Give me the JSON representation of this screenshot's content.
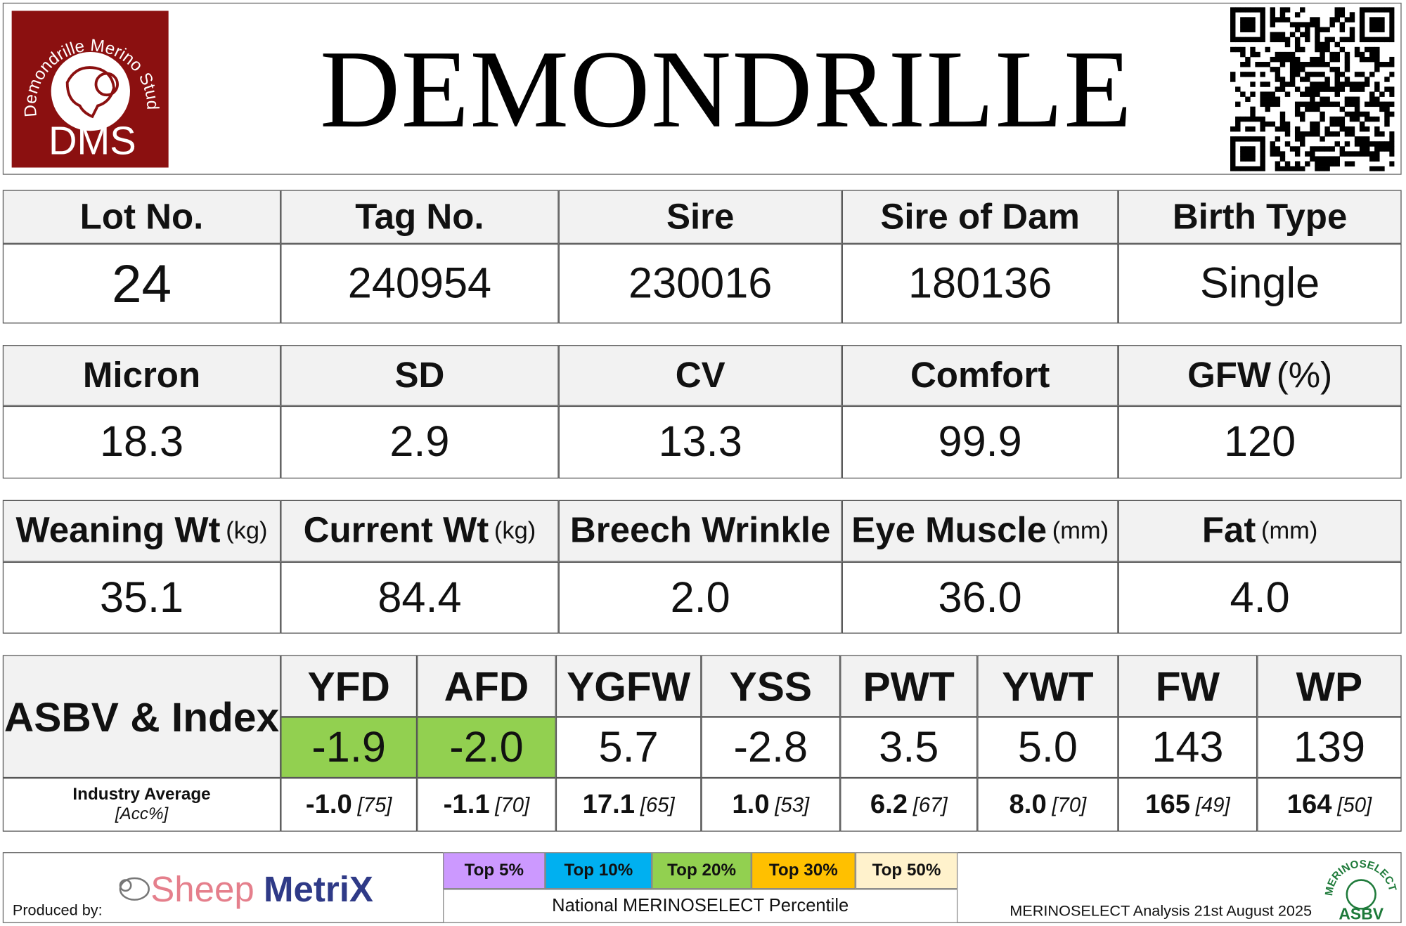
{
  "header": {
    "title": "DEMONDRILLE",
    "logo": {
      "arc": "Demondrille Merino Stud",
      "initials": "DMS"
    }
  },
  "tables": [
    {
      "columns": [
        {
          "label": "Lot No."
        },
        {
          "label": "Tag No."
        },
        {
          "label": "Sire"
        },
        {
          "label": "Sire of Dam"
        },
        {
          "label": "Birth Type"
        }
      ],
      "values": [
        "24",
        "240954",
        "230016",
        "180136",
        "Single"
      ]
    },
    {
      "columns": [
        {
          "label": "Micron"
        },
        {
          "label": "SD"
        },
        {
          "label": "CV"
        },
        {
          "label": "Comfort"
        },
        {
          "label": "GFW",
          "unit": "(%)"
        }
      ],
      "values": [
        "18.3",
        "2.9",
        "13.3",
        "99.9",
        "120"
      ]
    },
    {
      "columns": [
        {
          "label": "Weaning Wt",
          "unit": "(kg)"
        },
        {
          "label": "Current Wt",
          "unit": "(kg)"
        },
        {
          "label": "Breech Wrinkle"
        },
        {
          "label": "Eye Muscle",
          "unit": "(mm)"
        },
        {
          "label": "Fat",
          "unit": "(mm)"
        }
      ],
      "values": [
        "35.1",
        "84.4",
        "2.0",
        "36.0",
        "4.0"
      ]
    }
  ],
  "asbv": {
    "title": "ASBV & Index",
    "industry_label": "Industry Average",
    "accuracy_label": "[Acc%]",
    "traits": [
      {
        "name": "YFD",
        "value": "-1.9",
        "highlight": "#92d050",
        "average": "-1.0",
        "accuracy": "[75]"
      },
      {
        "name": "AFD",
        "value": "-2.0",
        "highlight": "#92d050",
        "average": "-1.1",
        "accuracy": "[70]"
      },
      {
        "name": "YGFW",
        "value": "5.7",
        "average": "17.1",
        "accuracy": "[65]"
      },
      {
        "name": "YSS",
        "value": "-2.8",
        "average": "1.0",
        "accuracy": "[53]"
      },
      {
        "name": "PWT",
        "value": "3.5",
        "average": "6.2",
        "accuracy": "[67]"
      },
      {
        "name": "YWT",
        "value": "5.0",
        "average": "8.0",
        "accuracy": "[70]"
      },
      {
        "name": "FW",
        "value": "143",
        "average": "165",
        "accuracy": "[49]"
      },
      {
        "name": "WP",
        "value": "139",
        "average": "164",
        "accuracy": "[50]"
      }
    ]
  },
  "footer": {
    "produced_by": "Produced by:",
    "brand": {
      "part1": "Sheep",
      "part2": "MetriX"
    },
    "percentiles": [
      {
        "label": "Top 5%",
        "color": "#cc99ff"
      },
      {
        "label": "Top 10%",
        "color": "#00b0f0"
      },
      {
        "label": "Top 20%",
        "color": "#92d050"
      },
      {
        "label": "Top 30%",
        "color": "#ffc000"
      },
      {
        "label": "Top 50%",
        "color": "#fff2cc"
      }
    ],
    "percentile_caption": "National MERINOSELECT Percentile",
    "analysis": "MERINOSELECT Analysis 21st August 2025",
    "logo": {
      "arc": "MERINOSELECT",
      "text": "ASBV"
    }
  }
}
